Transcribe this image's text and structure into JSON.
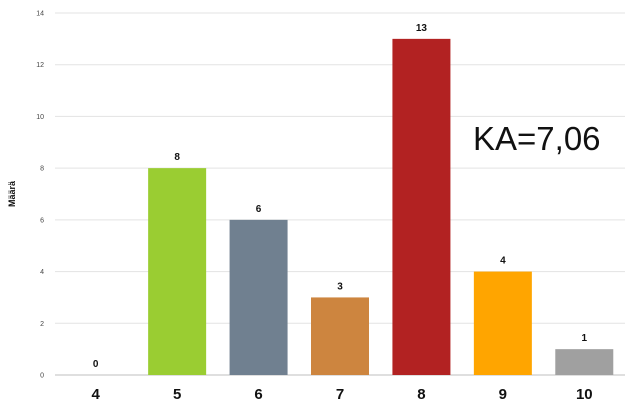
{
  "chart_data": {
    "type": "bar",
    "categories": [
      "4",
      "5",
      "6",
      "7",
      "8",
      "9",
      "10"
    ],
    "values": [
      0,
      8,
      6,
      3,
      13,
      4,
      1
    ],
    "colors": [
      "#ffffff",
      "#9acd32",
      "#708090",
      "#cd853f",
      "#b22222",
      "#ffa500",
      "#a0a0a0"
    ],
    "ylabel": "Määrä",
    "ylim": [
      0,
      14
    ],
    "yticks": [
      0,
      2,
      4,
      6,
      8,
      10,
      12,
      14
    ],
    "grid": true,
    "data_labels": true,
    "annotation": "KA=7,06"
  }
}
